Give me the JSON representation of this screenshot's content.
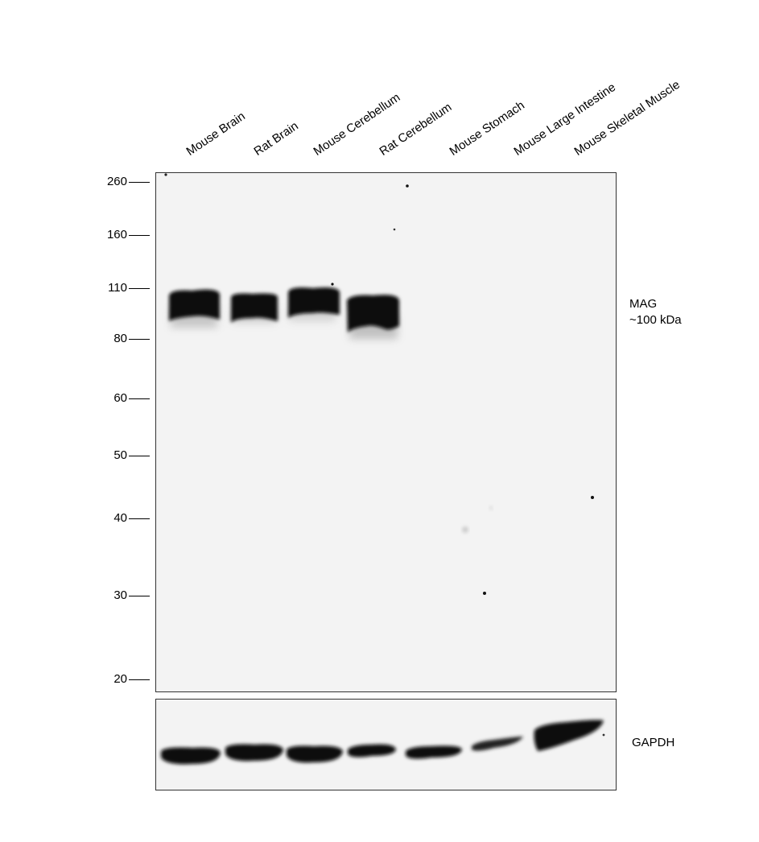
{
  "lanes": [
    "Mouse Brain",
    "Rat Brain",
    "Mouse Cerebellum",
    "Rat Cerebellum",
    "Mouse Stomach",
    "Mouse Large Intestine",
    "Mouse Skeletal Muscle"
  ],
  "markers": [
    "260",
    "160",
    "110",
    "80",
    "60",
    "50",
    "40",
    "30",
    "20"
  ],
  "target": {
    "name": "MAG",
    "size": "~100 kDa"
  },
  "loading_control": {
    "name": "GAPDH"
  }
}
